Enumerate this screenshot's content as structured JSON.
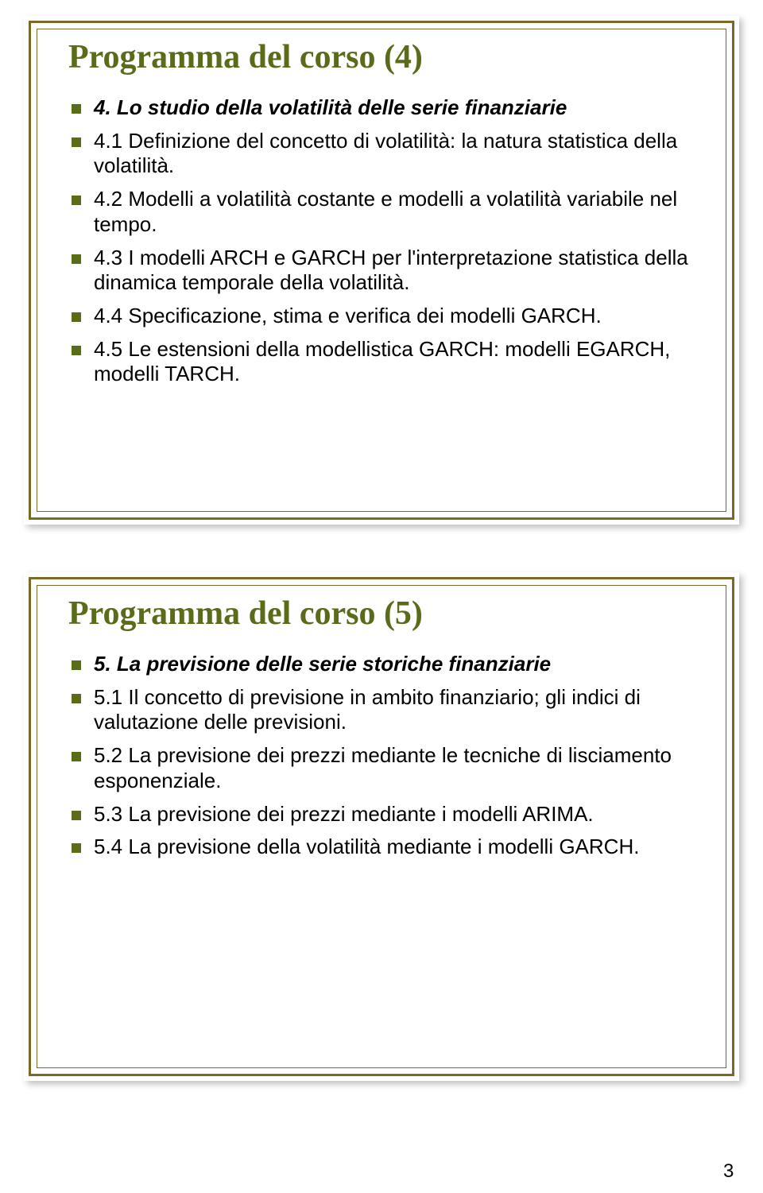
{
  "colors": {
    "border": "#7a6a2a",
    "title": "#5a6b1a",
    "bullet": "#5a6b1a",
    "text": "#000000",
    "bg": "#ffffff"
  },
  "slide1": {
    "title": "Programma del corso (4)",
    "items": [
      {
        "text": "4. Lo studio della volatilità delle serie finanziarie",
        "bold_italic": true
      },
      {
        "text": "4.1 Definizione del concetto di volatilità: la natura statistica della volatilità."
      },
      {
        "text": "4.2 Modelli a volatilità costante e modelli a volatilità variabile nel tempo."
      },
      {
        "text": "4.3 I modelli ARCH e GARCH per l'interpretazione statistica della dinamica temporale della volatilità."
      },
      {
        "text": "4.4 Specificazione, stima e verifica dei modelli GARCH."
      },
      {
        "text": "4.5 Le estensioni della modellistica GARCH: modelli EGARCH, modelli TARCH."
      }
    ]
  },
  "slide2": {
    "title": "Programma del corso (5)",
    "items": [
      {
        "text": "5. La previsione delle serie storiche finanziarie",
        "bold_italic": true
      },
      {
        "text": "5.1 Il concetto di previsione in ambito finanziario; gli indici di valutazione delle previsioni."
      },
      {
        "text": "5.2 La previsione dei prezzi mediante le tecniche di lisciamento esponenziale."
      },
      {
        "text": "5.3 La previsione dei prezzi mediante i modelli ARIMA."
      },
      {
        "text": "5.4 La previsione della volatilità mediante i modelli GARCH."
      }
    ]
  },
  "page_number": "3",
  "layout": {
    "slide1_height": 640,
    "slide2_height": 640,
    "title_fontsize": 42,
    "item_fontsize": 26
  }
}
